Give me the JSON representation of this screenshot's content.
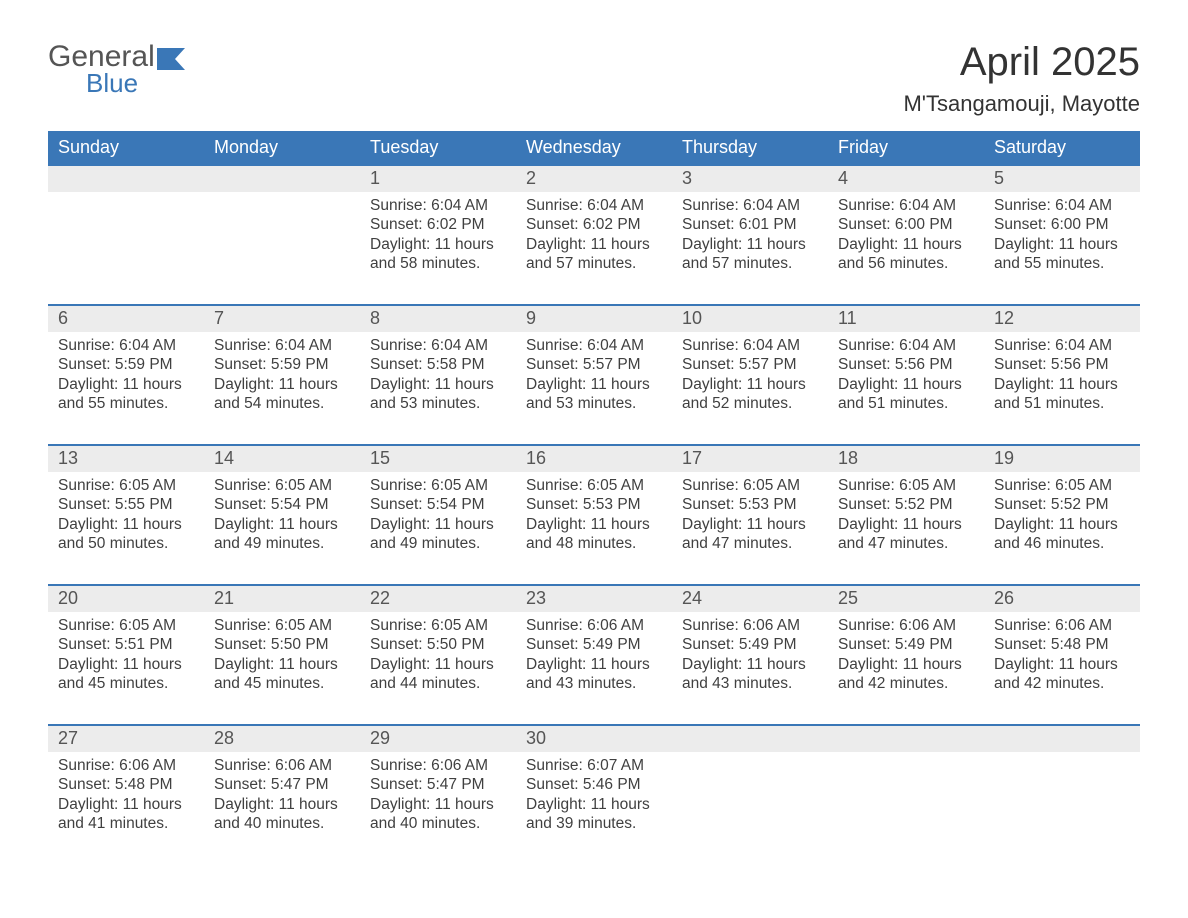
{
  "logo": {
    "text1": "General",
    "text2": "Blue",
    "icon_color": "#3a77b7"
  },
  "title": "April 2025",
  "location": "M'Tsangamouji, Mayotte",
  "colors": {
    "header_bg": "#3a77b7",
    "header_text": "#ffffff",
    "daynum_bg": "#ececec",
    "body_text": "#404040",
    "rule": "#3a77b7"
  },
  "day_headers": [
    "Sunday",
    "Monday",
    "Tuesday",
    "Wednesday",
    "Thursday",
    "Friday",
    "Saturday"
  ],
  "weeks": [
    [
      {
        "n": "",
        "sr": "",
        "ss": "",
        "dl": ""
      },
      {
        "n": "",
        "sr": "",
        "ss": "",
        "dl": ""
      },
      {
        "n": "1",
        "sr": "Sunrise: 6:04 AM",
        "ss": "Sunset: 6:02 PM",
        "dl": "Daylight: 11 hours and 58 minutes."
      },
      {
        "n": "2",
        "sr": "Sunrise: 6:04 AM",
        "ss": "Sunset: 6:02 PM",
        "dl": "Daylight: 11 hours and 57 minutes."
      },
      {
        "n": "3",
        "sr": "Sunrise: 6:04 AM",
        "ss": "Sunset: 6:01 PM",
        "dl": "Daylight: 11 hours and 57 minutes."
      },
      {
        "n": "4",
        "sr": "Sunrise: 6:04 AM",
        "ss": "Sunset: 6:00 PM",
        "dl": "Daylight: 11 hours and 56 minutes."
      },
      {
        "n": "5",
        "sr": "Sunrise: 6:04 AM",
        "ss": "Sunset: 6:00 PM",
        "dl": "Daylight: 11 hours and 55 minutes."
      }
    ],
    [
      {
        "n": "6",
        "sr": "Sunrise: 6:04 AM",
        "ss": "Sunset: 5:59 PM",
        "dl": "Daylight: 11 hours and 55 minutes."
      },
      {
        "n": "7",
        "sr": "Sunrise: 6:04 AM",
        "ss": "Sunset: 5:59 PM",
        "dl": "Daylight: 11 hours and 54 minutes."
      },
      {
        "n": "8",
        "sr": "Sunrise: 6:04 AM",
        "ss": "Sunset: 5:58 PM",
        "dl": "Daylight: 11 hours and 53 minutes."
      },
      {
        "n": "9",
        "sr": "Sunrise: 6:04 AM",
        "ss": "Sunset: 5:57 PM",
        "dl": "Daylight: 11 hours and 53 minutes."
      },
      {
        "n": "10",
        "sr": "Sunrise: 6:04 AM",
        "ss": "Sunset: 5:57 PM",
        "dl": "Daylight: 11 hours and 52 minutes."
      },
      {
        "n": "11",
        "sr": "Sunrise: 6:04 AM",
        "ss": "Sunset: 5:56 PM",
        "dl": "Daylight: 11 hours and 51 minutes."
      },
      {
        "n": "12",
        "sr": "Sunrise: 6:04 AM",
        "ss": "Sunset: 5:56 PM",
        "dl": "Daylight: 11 hours and 51 minutes."
      }
    ],
    [
      {
        "n": "13",
        "sr": "Sunrise: 6:05 AM",
        "ss": "Sunset: 5:55 PM",
        "dl": "Daylight: 11 hours and 50 minutes."
      },
      {
        "n": "14",
        "sr": "Sunrise: 6:05 AM",
        "ss": "Sunset: 5:54 PM",
        "dl": "Daylight: 11 hours and 49 minutes."
      },
      {
        "n": "15",
        "sr": "Sunrise: 6:05 AM",
        "ss": "Sunset: 5:54 PM",
        "dl": "Daylight: 11 hours and 49 minutes."
      },
      {
        "n": "16",
        "sr": "Sunrise: 6:05 AM",
        "ss": "Sunset: 5:53 PM",
        "dl": "Daylight: 11 hours and 48 minutes."
      },
      {
        "n": "17",
        "sr": "Sunrise: 6:05 AM",
        "ss": "Sunset: 5:53 PM",
        "dl": "Daylight: 11 hours and 47 minutes."
      },
      {
        "n": "18",
        "sr": "Sunrise: 6:05 AM",
        "ss": "Sunset: 5:52 PM",
        "dl": "Daylight: 11 hours and 47 minutes."
      },
      {
        "n": "19",
        "sr": "Sunrise: 6:05 AM",
        "ss": "Sunset: 5:52 PM",
        "dl": "Daylight: 11 hours and 46 minutes."
      }
    ],
    [
      {
        "n": "20",
        "sr": "Sunrise: 6:05 AM",
        "ss": "Sunset: 5:51 PM",
        "dl": "Daylight: 11 hours and 45 minutes."
      },
      {
        "n": "21",
        "sr": "Sunrise: 6:05 AM",
        "ss": "Sunset: 5:50 PM",
        "dl": "Daylight: 11 hours and 45 minutes."
      },
      {
        "n": "22",
        "sr": "Sunrise: 6:05 AM",
        "ss": "Sunset: 5:50 PM",
        "dl": "Daylight: 11 hours and 44 minutes."
      },
      {
        "n": "23",
        "sr": "Sunrise: 6:06 AM",
        "ss": "Sunset: 5:49 PM",
        "dl": "Daylight: 11 hours and 43 minutes."
      },
      {
        "n": "24",
        "sr": "Sunrise: 6:06 AM",
        "ss": "Sunset: 5:49 PM",
        "dl": "Daylight: 11 hours and 43 minutes."
      },
      {
        "n": "25",
        "sr": "Sunrise: 6:06 AM",
        "ss": "Sunset: 5:49 PM",
        "dl": "Daylight: 11 hours and 42 minutes."
      },
      {
        "n": "26",
        "sr": "Sunrise: 6:06 AM",
        "ss": "Sunset: 5:48 PM",
        "dl": "Daylight: 11 hours and 42 minutes."
      }
    ],
    [
      {
        "n": "27",
        "sr": "Sunrise: 6:06 AM",
        "ss": "Sunset: 5:48 PM",
        "dl": "Daylight: 11 hours and 41 minutes."
      },
      {
        "n": "28",
        "sr": "Sunrise: 6:06 AM",
        "ss": "Sunset: 5:47 PM",
        "dl": "Daylight: 11 hours and 40 minutes."
      },
      {
        "n": "29",
        "sr": "Sunrise: 6:06 AM",
        "ss": "Sunset: 5:47 PM",
        "dl": "Daylight: 11 hours and 40 minutes."
      },
      {
        "n": "30",
        "sr": "Sunrise: 6:07 AM",
        "ss": "Sunset: 5:46 PM",
        "dl": "Daylight: 11 hours and 39 minutes."
      },
      {
        "n": "",
        "sr": "",
        "ss": "",
        "dl": ""
      },
      {
        "n": "",
        "sr": "",
        "ss": "",
        "dl": ""
      },
      {
        "n": "",
        "sr": "",
        "ss": "",
        "dl": ""
      }
    ]
  ]
}
